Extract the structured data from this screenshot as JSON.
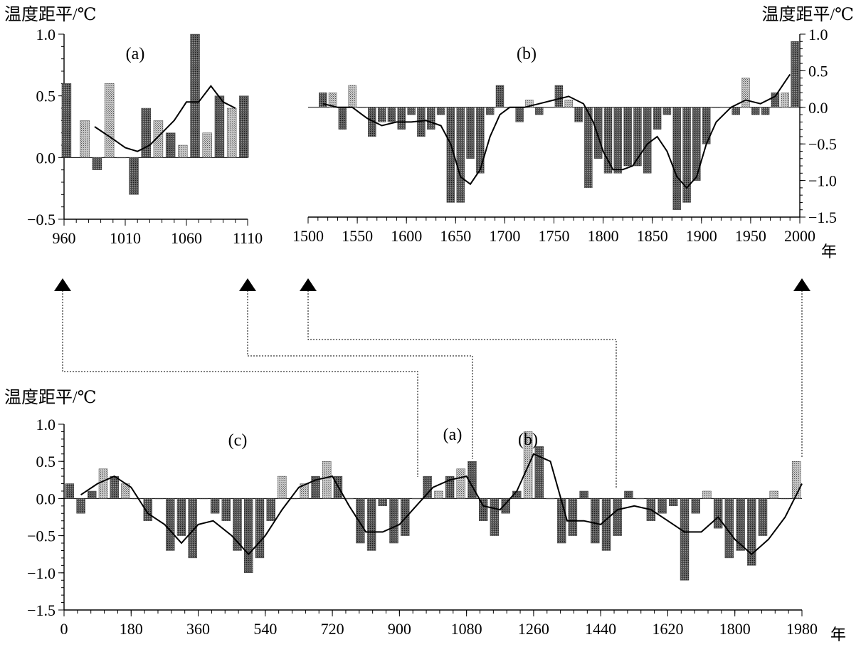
{
  "chart_data": [
    {
      "id": "a",
      "type": "bar",
      "panel_label": "(a)",
      "ylabel": "温度距平/℃",
      "ylim": [
        -0.5,
        1.0
      ],
      "yticks": [
        "1.0",
        "0.5",
        "0.0",
        "−0.5"
      ],
      "xlim": [
        960,
        1110
      ],
      "xticks": [
        "960",
        "1010",
        "1060",
        "1110"
      ],
      "grid": false,
      "x": [
        962,
        977,
        987,
        997,
        1007,
        1017,
        1027,
        1037,
        1047,
        1057,
        1067,
        1077,
        1087,
        1097,
        1107
      ],
      "values": [
        0.6,
        0.3,
        -0.1,
        0.6,
        0.0,
        -0.3,
        0.4,
        0.3,
        0.2,
        0.1,
        1.0,
        0.2,
        0.5,
        0.4,
        0.5
      ],
      "smooth": {
        "x": [
          985,
          1000,
          1010,
          1020,
          1030,
          1040,
          1050,
          1060,
          1070,
          1080,
          1090,
          1100
        ],
        "y": [
          0.25,
          0.15,
          0.08,
          0.05,
          0.1,
          0.2,
          0.3,
          0.45,
          0.45,
          0.58,
          0.45,
          0.4
        ]
      }
    },
    {
      "id": "b",
      "type": "bar",
      "panel_label": "(b)",
      "ylabel": "温度距平/℃",
      "ylim": [
        -1.5,
        1.0
      ],
      "yticks": [
        "1.0",
        "0.5",
        "0.0",
        "−0.5",
        "−1.0",
        "−1.5"
      ],
      "xlim": [
        1500,
        2000
      ],
      "xticks": [
        "1500",
        "1550",
        "1600",
        "1650",
        "1700",
        "1750",
        "1800",
        "1850",
        "1900",
        "1950",
        "2000"
      ],
      "x_unit": "年",
      "grid": false,
      "x": [
        1515,
        1525,
        1535,
        1545,
        1555,
        1565,
        1575,
        1585,
        1595,
        1605,
        1615,
        1625,
        1635,
        1645,
        1655,
        1665,
        1675,
        1685,
        1695,
        1705,
        1715,
        1725,
        1735,
        1745,
        1755,
        1765,
        1775,
        1785,
        1795,
        1805,
        1815,
        1825,
        1835,
        1845,
        1855,
        1865,
        1875,
        1885,
        1895,
        1905,
        1915,
        1925,
        1935,
        1945,
        1955,
        1965,
        1975,
        1985,
        1995
      ],
      "values": [
        0.2,
        0.2,
        -0.3,
        0.3,
        0.0,
        -0.4,
        -0.2,
        -0.2,
        -0.3,
        -0.1,
        -0.4,
        -0.3,
        -0.1,
        -1.3,
        -1.3,
        -0.7,
        -0.9,
        -0.1,
        0.3,
        0.0,
        -0.2,
        0.1,
        -0.1,
        0.0,
        0.3,
        0.1,
        -0.2,
        -1.1,
        -0.7,
        -0.9,
        -0.9,
        -0.8,
        -0.8,
        -0.9,
        -0.3,
        -0.1,
        -1.4,
        -1.3,
        -1.0,
        -0.5,
        0.0,
        0.0,
        -0.1,
        0.4,
        -0.1,
        -0.1,
        0.2,
        0.2,
        0.9
      ],
      "smooth": {
        "x": [
          1515,
          1530,
          1545,
          1560,
          1575,
          1590,
          1605,
          1620,
          1635,
          1645,
          1655,
          1665,
          1675,
          1685,
          1695,
          1705,
          1720,
          1735,
          1750,
          1765,
          1780,
          1790,
          1800,
          1810,
          1820,
          1830,
          1845,
          1855,
          1865,
          1875,
          1885,
          1895,
          1905,
          1915,
          1930,
          1945,
          1960,
          1975,
          1990
        ],
        "y": [
          0.05,
          0.0,
          0.0,
          -0.15,
          -0.25,
          -0.2,
          -0.2,
          -0.18,
          -0.25,
          -0.5,
          -0.95,
          -1.05,
          -0.85,
          -0.4,
          -0.1,
          0.0,
          0.0,
          0.05,
          0.1,
          0.15,
          0.05,
          -0.2,
          -0.6,
          -0.85,
          -0.85,
          -0.8,
          -0.5,
          -0.4,
          -0.6,
          -0.95,
          -1.1,
          -0.95,
          -0.5,
          -0.2,
          0.0,
          0.1,
          0.05,
          0.15,
          0.45
        ]
      }
    },
    {
      "id": "c",
      "type": "bar",
      "panel_label": "(c)",
      "ylabel": "温度距平/℃",
      "ylim": [
        -1.5,
        1.0
      ],
      "yticks": [
        "1.0",
        "0.5",
        "0.0",
        "−0.5",
        "−1.0",
        "−1.5"
      ],
      "xlim": [
        0,
        1980
      ],
      "xticks": [
        "0",
        "180",
        "360",
        "540",
        "720",
        "900",
        "1080",
        "1260",
        "1440",
        "1620",
        "1800",
        "1980"
      ],
      "x_unit": "年",
      "grid": false,
      "x": [
        15,
        45,
        75,
        105,
        135,
        165,
        195,
        225,
        255,
        285,
        315,
        345,
        375,
        405,
        435,
        465,
        495,
        525,
        555,
        585,
        615,
        645,
        675,
        705,
        735,
        765,
        795,
        825,
        855,
        885,
        915,
        945,
        975,
        1005,
        1035,
        1065,
        1095,
        1125,
        1155,
        1185,
        1215,
        1245,
        1275,
        1305,
        1335,
        1365,
        1395,
        1425,
        1455,
        1485,
        1515,
        1545,
        1575,
        1605,
        1635,
        1665,
        1695,
        1725,
        1755,
        1785,
        1815,
        1845,
        1875,
        1905,
        1935,
        1965
      ],
      "values": [
        0.2,
        -0.2,
        0.1,
        0.4,
        0.3,
        0.2,
        0.0,
        -0.3,
        0.0,
        -0.7,
        -0.5,
        -0.8,
        0.0,
        -0.2,
        -0.3,
        -0.7,
        -1.0,
        -0.8,
        -0.3,
        0.3,
        0.0,
        0.2,
        0.3,
        0.5,
        0.3,
        0.0,
        -0.6,
        -0.7,
        -0.1,
        -0.6,
        -0.5,
        0.0,
        0.3,
        0.1,
        0.3,
        0.4,
        0.5,
        -0.3,
        -0.5,
        -0.2,
        0.1,
        0.9,
        0.7,
        0.0,
        -0.6,
        -0.5,
        0.1,
        -0.6,
        -0.7,
        -0.5,
        0.1,
        0.0,
        -0.3,
        -0.2,
        -0.1,
        -1.1,
        -0.2,
        0.1,
        -0.4,
        -0.8,
        -0.7,
        -0.9,
        -0.5,
        0.1,
        0.0,
        0.5
      ],
      "smooth": {
        "x": [
          45,
          90,
          135,
          180,
          225,
          270,
          315,
          360,
          400,
          450,
          495,
          540,
          585,
          630,
          675,
          720,
          765,
          810,
          855,
          900,
          945,
          990,
          1035,
          1080,
          1125,
          1170,
          1215,
          1260,
          1305,
          1350,
          1395,
          1440,
          1485,
          1530,
          1575,
          1620,
          1665,
          1710,
          1755,
          1800,
          1845,
          1890,
          1935,
          1980
        ],
        "y": [
          0.05,
          0.2,
          0.3,
          0.15,
          -0.2,
          -0.35,
          -0.6,
          -0.35,
          -0.3,
          -0.5,
          -0.75,
          -0.5,
          -0.15,
          0.15,
          0.25,
          0.3,
          -0.1,
          -0.45,
          -0.45,
          -0.35,
          -0.1,
          0.15,
          0.25,
          0.3,
          -0.1,
          -0.15,
          0.1,
          0.6,
          0.5,
          -0.3,
          -0.3,
          -0.35,
          -0.15,
          -0.1,
          -0.15,
          -0.3,
          -0.45,
          -0.45,
          -0.25,
          -0.55,
          -0.75,
          -0.55,
          -0.25,
          0.2
        ]
      }
    }
  ],
  "connector_labels": {
    "a": "(a)",
    "b": "(b)"
  }
}
